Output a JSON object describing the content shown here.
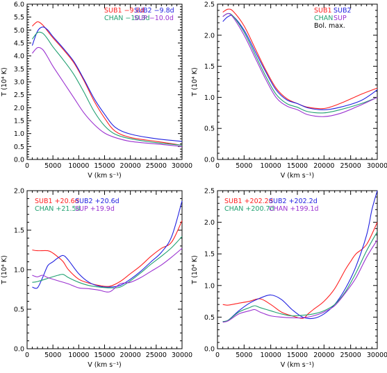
{
  "colors": {
    "red": "#ff2020",
    "blue": "#2020e0",
    "green": "#20a070",
    "purple": "#9a30d0",
    "black": "#000000"
  },
  "chart_data": [
    {
      "type": "line",
      "xlabel": "V (km s⁻¹)",
      "ylabel": "T (10⁴ K)",
      "xlim": [
        0,
        30000
      ],
      "ylim": [
        0,
        6
      ],
      "xticks": [
        "0",
        "5000",
        "10000",
        "15000",
        "20000",
        "25000",
        "30000"
      ],
      "yticks": [
        "0.0",
        "0.5",
        "1.0",
        "1.5",
        "2.0",
        "2.5",
        "3.0",
        "3.5",
        "4.0",
        "4.5",
        "5.0",
        "5.5",
        "6.0"
      ],
      "legend": [
        {
          "text": "SUB1  −9.8d",
          "color": "red"
        },
        {
          "text": "SUB2  −9.8d",
          "color": "blue"
        },
        {
          "text": "CHAN  −10.3d",
          "color": "green"
        },
        {
          "text": "SUP  −10.0d",
          "color": "purple"
        }
      ],
      "series": [
        {
          "name": "SUB1 −9.8d",
          "color": "red",
          "x": [
            1000,
            2000,
            3000,
            4000,
            5000,
            7000,
            9000,
            11000,
            13000,
            15000,
            17000,
            20000,
            25000,
            30000
          ],
          "y": [
            5.15,
            5.32,
            5.2,
            4.95,
            4.7,
            4.25,
            3.75,
            3.05,
            2.25,
            1.6,
            1.1,
            0.85,
            0.7,
            0.55
          ]
        },
        {
          "name": "SUB2 −9.8d",
          "color": "blue",
          "x": [
            1000,
            2000,
            3000,
            4000,
            5000,
            7000,
            9000,
            11000,
            13000,
            15000,
            17000,
            20000,
            25000,
            30000
          ],
          "y": [
            4.4,
            4.95,
            5.12,
            5.0,
            4.75,
            4.3,
            3.8,
            3.1,
            2.35,
            1.75,
            1.25,
            0.98,
            0.8,
            0.7
          ]
        },
        {
          "name": "CHAN −10.3d",
          "color": "green",
          "x": [
            1000,
            2000,
            3000,
            4000,
            5000,
            7000,
            9000,
            11000,
            13000,
            15000,
            17000,
            20000,
            25000,
            30000
          ],
          "y": [
            4.65,
            4.9,
            4.88,
            4.65,
            4.35,
            3.85,
            3.3,
            2.6,
            1.85,
            1.3,
            0.98,
            0.8,
            0.65,
            0.55
          ]
        },
        {
          "name": "SUP −10.0d",
          "color": "purple",
          "x": [
            1000,
            2000,
            3000,
            4000,
            5000,
            7000,
            9000,
            11000,
            13000,
            15000,
            17000,
            20000,
            25000,
            30000
          ],
          "y": [
            4.1,
            4.32,
            4.25,
            3.95,
            3.6,
            3.0,
            2.4,
            1.8,
            1.35,
            1.02,
            0.85,
            0.7,
            0.6,
            0.5
          ]
        }
      ]
    },
    {
      "type": "line",
      "xlabel": "V (km s⁻¹)",
      "ylabel": "T (10⁴ K)",
      "xlim": [
        0,
        30000
      ],
      "ylim": [
        0,
        2.5
      ],
      "xticks": [
        "0",
        "5000",
        "10000",
        "15000",
        "20000",
        "25000",
        "30000"
      ],
      "yticks": [
        "0.0",
        "0.5",
        "1.0",
        "1.5",
        "2.0",
        "2.5"
      ],
      "legend": [
        {
          "text": "SUB1",
          "color": "red"
        },
        {
          "text": "SUB2",
          "color": "blue"
        },
        {
          "text": "CHAN",
          "color": "green"
        },
        {
          "text": "SUP",
          "color": "purple"
        },
        {
          "text": "Bol. max.",
          "color": "black"
        }
      ],
      "series": [
        {
          "name": "SUB1",
          "color": "red",
          "x": [
            1000,
            2000,
            3000,
            5000,
            7000,
            9000,
            11000,
            13000,
            15000,
            17000,
            20000,
            23000,
            27000,
            30000
          ],
          "y": [
            2.37,
            2.42,
            2.38,
            2.15,
            1.8,
            1.45,
            1.15,
            0.98,
            0.9,
            0.84,
            0.82,
            0.9,
            1.05,
            1.15
          ]
        },
        {
          "name": "SUB2",
          "color": "blue",
          "x": [
            1000,
            2000,
            3000,
            5000,
            7000,
            9000,
            11000,
            13000,
            15000,
            17000,
            20000,
            23000,
            27000,
            30000
          ],
          "y": [
            2.22,
            2.3,
            2.3,
            2.08,
            1.75,
            1.42,
            1.12,
            0.96,
            0.9,
            0.83,
            0.8,
            0.84,
            0.95,
            1.12
          ]
        },
        {
          "name": "CHAN",
          "color": "green",
          "x": [
            1000,
            2000,
            3000,
            5000,
            7000,
            9000,
            11000,
            13000,
            15000,
            17000,
            20000,
            23000,
            27000,
            30000
          ],
          "y": [
            2.3,
            2.35,
            2.3,
            2.05,
            1.7,
            1.35,
            1.05,
            0.9,
            0.84,
            0.77,
            0.75,
            0.8,
            0.9,
            1.0
          ]
        },
        {
          "name": "SUP",
          "color": "purple",
          "x": [
            1000,
            2000,
            3000,
            5000,
            7000,
            9000,
            11000,
            13000,
            15000,
            17000,
            20000,
            23000,
            27000,
            30000
          ],
          "y": [
            2.3,
            2.35,
            2.28,
            2.0,
            1.65,
            1.3,
            1.0,
            0.86,
            0.8,
            0.72,
            0.69,
            0.74,
            0.88,
            1.0
          ]
        }
      ]
    },
    {
      "type": "line",
      "xlabel": "V (km s⁻¹)",
      "ylabel": "T (10⁴ K)",
      "xlim": [
        0,
        30000
      ],
      "ylim": [
        0,
        2
      ],
      "xticks": [
        "0",
        "5000",
        "10000",
        "15000",
        "20000",
        "25000",
        "30000"
      ],
      "yticks": [
        "0.0",
        "0.5",
        "1.0",
        "1.5",
        "2.0"
      ],
      "legend": [
        {
          "text": "SUB1  +20.6d",
          "color": "red"
        },
        {
          "text": "SUB2  +20.6d",
          "color": "blue"
        },
        {
          "text": "CHAN  +21.5d",
          "color": "green"
        },
        {
          "text": "SUP  +19.9d",
          "color": "purple"
        }
      ],
      "series": [
        {
          "name": "SUB1 +20.6d",
          "color": "red",
          "x": [
            1000,
            2000,
            4000,
            5000,
            6000,
            7000,
            8000,
            10000,
            12000,
            14000,
            16000,
            18000,
            20000,
            22000,
            24000,
            26000,
            28000,
            30000
          ],
          "y": [
            1.25,
            1.24,
            1.24,
            1.21,
            1.16,
            1.1,
            1.0,
            0.88,
            0.83,
            0.8,
            0.79,
            0.85,
            0.95,
            1.05,
            1.17,
            1.27,
            1.35,
            1.62
          ]
        },
        {
          "name": "SUB2 +20.6d",
          "color": "blue",
          "x": [
            1000,
            2000,
            3000,
            4000,
            5000,
            6000,
            7000,
            8000,
            10000,
            12000,
            14000,
            16000,
            18000,
            20000,
            22000,
            24000,
            26000,
            28000,
            30000
          ],
          "y": [
            0.78,
            0.77,
            0.9,
            1.05,
            1.1,
            1.15,
            1.18,
            1.12,
            0.95,
            0.84,
            0.79,
            0.78,
            0.8,
            0.88,
            0.98,
            1.1,
            1.22,
            1.42,
            1.87
          ]
        },
        {
          "name": "CHAN +21.5d",
          "color": "green",
          "x": [
            1000,
            2000,
            4000,
            6000,
            7000,
            8000,
            10000,
            12000,
            14000,
            16000,
            18000,
            20000,
            22000,
            24000,
            26000,
            28000,
            30000
          ],
          "y": [
            0.84,
            0.85,
            0.89,
            0.93,
            0.94,
            0.9,
            0.84,
            0.8,
            0.78,
            0.77,
            0.78,
            0.86,
            0.96,
            1.07,
            1.17,
            1.28,
            1.42
          ]
        },
        {
          "name": "SUP +19.9d",
          "color": "purple",
          "x": [
            1000,
            2000,
            3000,
            4000,
            6000,
            8000,
            10000,
            12000,
            14000,
            16000,
            18000,
            20000,
            22000,
            24000,
            26000,
            28000,
            30000
          ],
          "y": [
            0.93,
            0.91,
            0.93,
            0.9,
            0.86,
            0.82,
            0.77,
            0.76,
            0.74,
            0.72,
            0.82,
            0.84,
            0.9,
            0.98,
            1.06,
            1.16,
            1.27
          ]
        }
      ]
    },
    {
      "type": "line",
      "xlabel": "V (km s⁻¹)",
      "ylabel": "T (10⁴ K)",
      "xlim": [
        0,
        30000
      ],
      "ylim": [
        0,
        2.5
      ],
      "xticks": [
        "0",
        "5000",
        "10000",
        "15000",
        "20000",
        "25000",
        "30000"
      ],
      "yticks": [
        "0.0",
        "0.5",
        "1.0",
        "1.5",
        "2.0",
        "2.5"
      ],
      "legend": [
        {
          "text": "SUB1  +202.2d",
          "color": "red"
        },
        {
          "text": "SUB2  +202.2d",
          "color": "blue"
        },
        {
          "text": "CHAN  +200.7d",
          "color": "green"
        },
        {
          "text": "CHAN  +199.1d",
          "color": "purple"
        }
      ],
      "series": [
        {
          "name": "SUB1 +202.2d",
          "color": "red",
          "x": [
            1000,
            2000,
            4000,
            6000,
            8000,
            10000,
            12000,
            14000,
            16000,
            17000,
            18000,
            20000,
            22000,
            24000,
            25000,
            26000,
            28000,
            30000
          ],
          "y": [
            0.7,
            0.69,
            0.72,
            0.75,
            0.79,
            0.7,
            0.58,
            0.52,
            0.48,
            0.55,
            0.62,
            0.75,
            0.95,
            1.25,
            1.38,
            1.5,
            1.65,
            2.0
          ]
        },
        {
          "name": "SUB2 +202.2d",
          "color": "blue",
          "x": [
            1000,
            2000,
            4000,
            6000,
            8000,
            10000,
            12000,
            14000,
            16000,
            18000,
            20000,
            22000,
            24000,
            26000,
            28000,
            29000,
            30000
          ],
          "y": [
            0.43,
            0.45,
            0.6,
            0.72,
            0.8,
            0.85,
            0.78,
            0.62,
            0.5,
            0.48,
            0.55,
            0.7,
            0.95,
            1.3,
            1.8,
            2.2,
            2.5
          ]
        },
        {
          "name": "CHAN +200.7d",
          "color": "green",
          "x": [
            1000,
            2000,
            4000,
            6000,
            7000,
            8000,
            10000,
            12000,
            14000,
            16000,
            18000,
            20000,
            22000,
            24000,
            26000,
            28000,
            30000
          ],
          "y": [
            0.43,
            0.45,
            0.58,
            0.65,
            0.68,
            0.65,
            0.6,
            0.55,
            0.52,
            0.53,
            0.55,
            0.6,
            0.7,
            0.9,
            1.2,
            1.55,
            1.85
          ]
        },
        {
          "name": "CHAN +199.1d",
          "color": "purple",
          "x": [
            1000,
            2000,
            4000,
            6000,
            7000,
            8000,
            10000,
            12000,
            14000,
            16000,
            18000,
            20000,
            22000,
            24000,
            26000,
            28000,
            30000
          ],
          "y": [
            0.42,
            0.44,
            0.55,
            0.6,
            0.62,
            0.58,
            0.52,
            0.5,
            0.49,
            0.49,
            0.52,
            0.58,
            0.68,
            0.88,
            1.12,
            1.45,
            1.72
          ]
        }
      ]
    }
  ]
}
